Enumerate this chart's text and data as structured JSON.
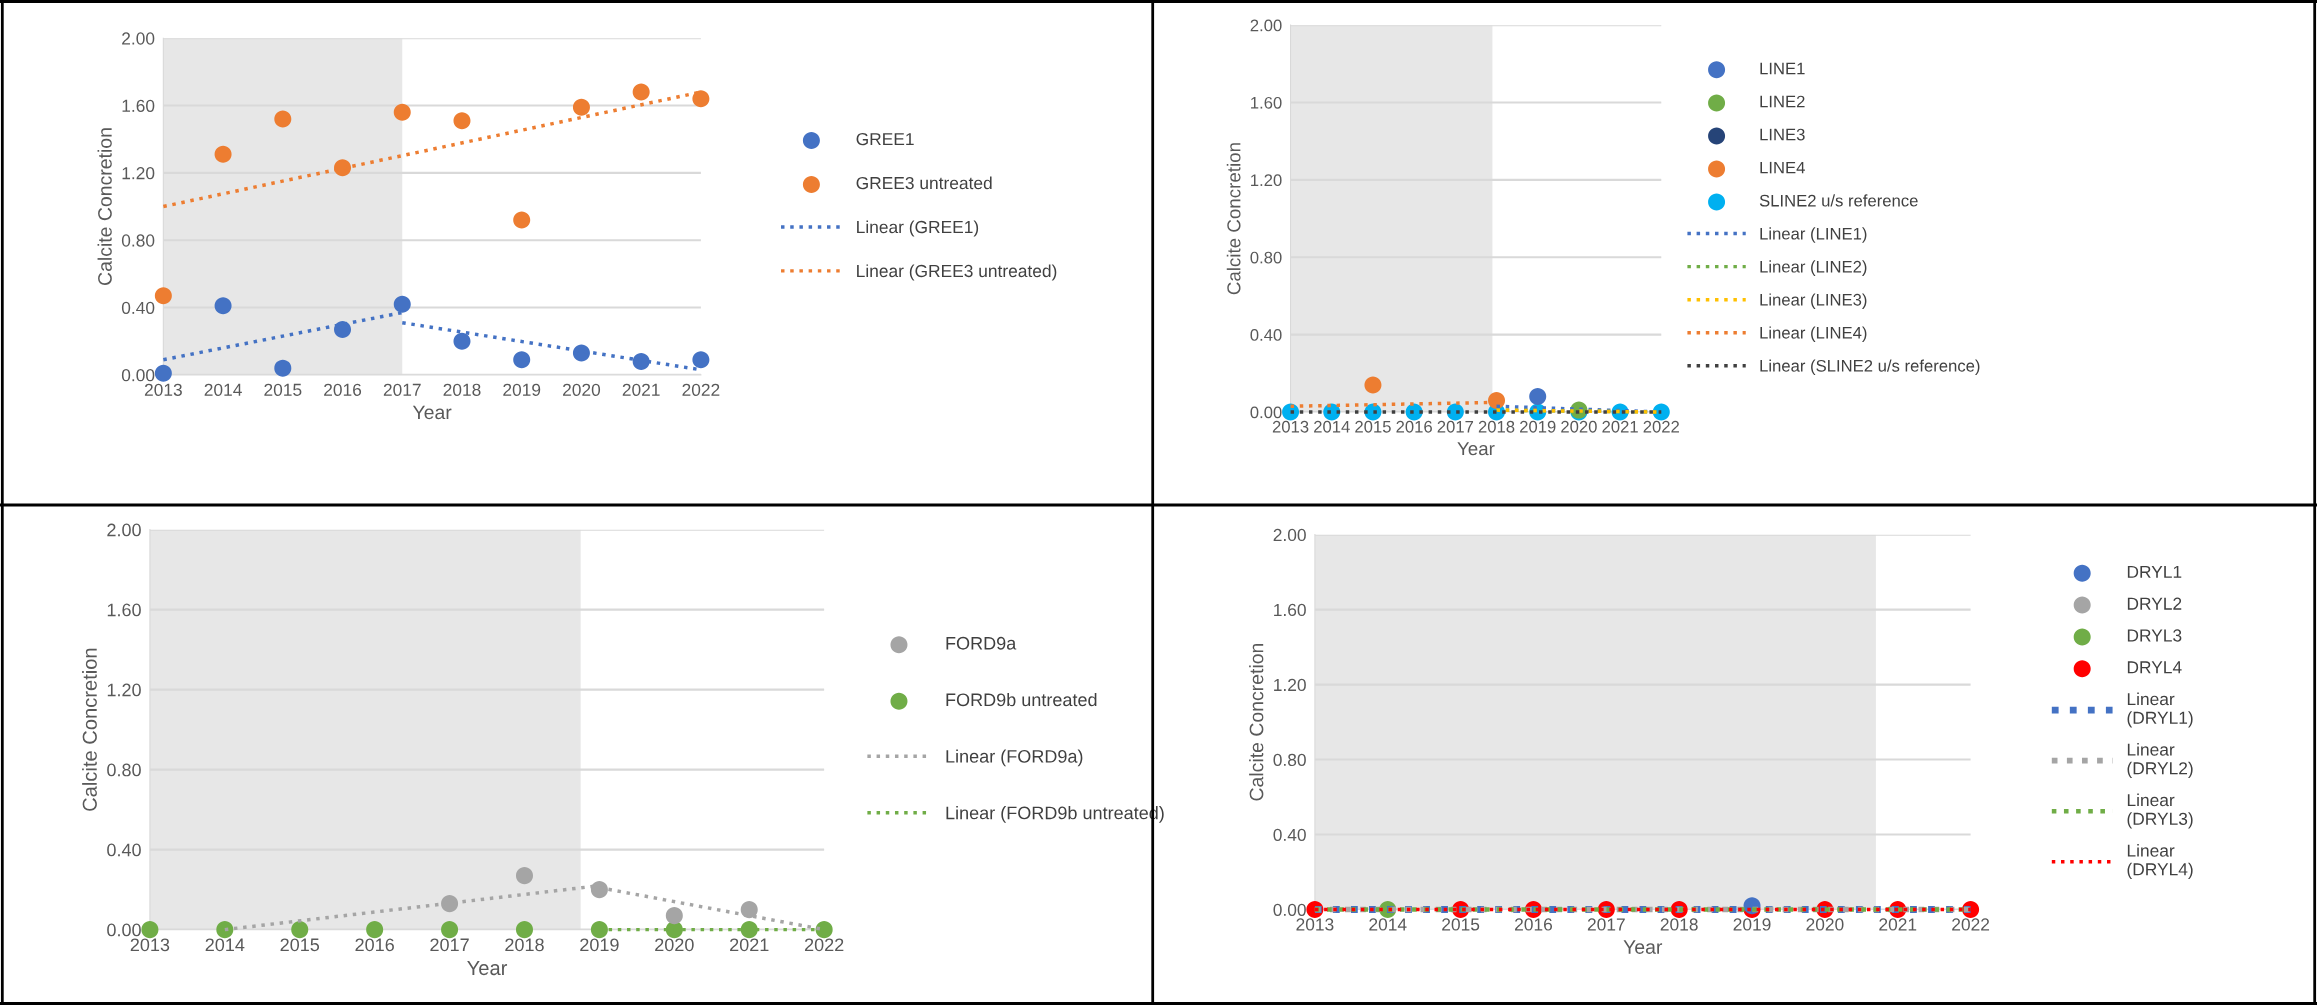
{
  "chart_data": [
    {
      "type": "scatter",
      "xlabel": "Year",
      "ylabel": "Calcite Concretion",
      "xlim": [
        2013,
        2022
      ],
      "xticks": [
        2013,
        2014,
        2015,
        2016,
        2017,
        2018,
        2019,
        2020,
        2021,
        2022
      ],
      "ylim": [
        0,
        2
      ],
      "yticks": [
        {
          "value": 0,
          "label": "0.00"
        },
        {
          "value": 0.4,
          "label": "0.40"
        },
        {
          "value": 0.8,
          "label": "0.80"
        },
        {
          "value": 1.2,
          "label": "1.20"
        },
        {
          "value": 1.6,
          "label": "1.60"
        },
        {
          "value": 2,
          "label": "2.00"
        }
      ],
      "grid": "y",
      "legend": "right",
      "x": [
        2013,
        2014,
        2015,
        2016,
        2017,
        2018,
        2019,
        2020,
        2021,
        2022
      ],
      "bands": [
        {
          "axis": "x",
          "from": 2013,
          "to": 2017,
          "color": "#e7e7e7"
        }
      ],
      "series": [
        {
          "name": "GREE1",
          "color": "#4472c4",
          "values": [
            0.01,
            0.41,
            0.04,
            0.27,
            0.42,
            0.2,
            0.09,
            0.13,
            0.08,
            0.09
          ]
        },
        {
          "name": "GREE3 untreated",
          "color": "#ed7d31",
          "values": [
            0.47,
            1.31,
            1.52,
            1.23,
            1.56,
            1.51,
            0.92,
            1.59,
            1.68,
            1.64
          ]
        },
        {
          "name": "Linear (GREE1)",
          "type": "line",
          "line_style": "dotted",
          "color": "#4472c4",
          "x": [
            2013,
            2017,
            null,
            2017,
            2022
          ],
          "values": [
            0.09,
            0.37,
            null,
            0.31,
            0.03
          ]
        },
        {
          "name": "Linear (GREE3 untreated)",
          "type": "line",
          "line_style": "dotted",
          "color": "#ed7d31",
          "x": [
            2013,
            2022
          ],
          "values": [
            1.0,
            1.68
          ]
        }
      ]
    },
    {
      "type": "scatter",
      "xlabel": "Year",
      "ylabel": "Calcite Concretion",
      "xlim": [
        2013,
        2022
      ],
      "xticks": [
        2013,
        2014,
        2015,
        2016,
        2017,
        2018,
        2019,
        2020,
        2021,
        2022
      ],
      "ylim": [
        0,
        2
      ],
      "yticks": [
        {
          "value": 0,
          "label": "0.00"
        },
        {
          "value": 0.4,
          "label": "0.40"
        },
        {
          "value": 0.8,
          "label": "0.80"
        },
        {
          "value": 1.2,
          "label": "1.20"
        },
        {
          "value": 1.6,
          "label": "1.60"
        },
        {
          "value": 2,
          "label": "2.00"
        }
      ],
      "grid": "y",
      "legend": "right",
      "x": [
        2013,
        2014,
        2015,
        2016,
        2017,
        2018,
        2019,
        2020,
        2021,
        2022
      ],
      "bands": [
        {
          "axis": "x",
          "from": 2013,
          "to": 2017.9,
          "color": "#e7e7e7"
        }
      ],
      "series": [
        {
          "name": "LINE1",
          "color": "#4472c4",
          "values": [
            null,
            null,
            null,
            null,
            null,
            null,
            0.08,
            null,
            null,
            null
          ]
        },
        {
          "name": "LINE2",
          "color": "#70ad47",
          "values": [
            null,
            null,
            null,
            null,
            null,
            null,
            null,
            0.01,
            null,
            null
          ]
        },
        {
          "name": "LINE3",
          "color": "#264478",
          "values": [
            null,
            null,
            null,
            null,
            null,
            null,
            null,
            null,
            null,
            null
          ]
        },
        {
          "name": "LINE4",
          "color": "#ed7d31",
          "values": [
            null,
            null,
            0.14,
            null,
            null,
            0.06,
            null,
            null,
            null,
            null
          ]
        },
        {
          "name": "SLINE2 u/s reference",
          "color": "#00b0f0",
          "values": [
            0,
            0,
            0,
            0,
            0,
            0,
            0,
            0,
            0,
            0
          ]
        },
        {
          "name": "Linear (LINE1)",
          "type": "line",
          "line_style": "dotted",
          "color": "#4472c4",
          "x": [
            2018,
            2022
          ],
          "values": [
            0.03,
            0.0
          ]
        },
        {
          "name": "Linear (LINE2)",
          "type": "line",
          "line_style": "dotted",
          "color": "#70ad47",
          "x": [
            2018,
            2022
          ],
          "values": [
            0.01,
            0.0
          ]
        },
        {
          "name": "Linear (LINE3)",
          "type": "line",
          "line_style": "dotted",
          "color": "#ffc000",
          "x": [
            2018,
            2022
          ],
          "values": [
            0.01,
            0.0
          ]
        },
        {
          "name": "Linear (LINE4)",
          "type": "line",
          "line_style": "dotted",
          "color": "#ed7d31",
          "x": [
            2013,
            2018
          ],
          "values": [
            0.03,
            0.05
          ]
        },
        {
          "name": "Linear (SLINE2 u/s reference)",
          "type": "line",
          "line_style": "dotted",
          "color": "#404040",
          "x": [
            2013,
            2022
          ],
          "values": [
            0,
            0
          ]
        }
      ]
    },
    {
      "type": "scatter",
      "xlabel": "Year",
      "ylabel": "Calcite Concretion",
      "xlim": [
        2013,
        2022
      ],
      "xticks": [
        2013,
        2014,
        2015,
        2016,
        2017,
        2018,
        2019,
        2020,
        2021,
        2022
      ],
      "ylim": [
        0,
        2
      ],
      "yticks": [
        {
          "value": 0,
          "label": "0.00"
        },
        {
          "value": 0.4,
          "label": "0.40"
        },
        {
          "value": 0.8,
          "label": "0.80"
        },
        {
          "value": 1.2,
          "label": "1.20"
        },
        {
          "value": 1.6,
          "label": "1.60"
        },
        {
          "value": 2,
          "label": "2.00"
        }
      ],
      "grid": "y",
      "legend": "right",
      "x": [
        2013,
        2014,
        2015,
        2016,
        2017,
        2018,
        2019,
        2020,
        2021,
        2022
      ],
      "bands": [
        {
          "axis": "x",
          "from": 2013,
          "to": 2018.75,
          "color": "#e7e7e7"
        }
      ],
      "series": [
        {
          "name": "FORD9a",
          "color": "#a5a5a5",
          "values": [
            null,
            null,
            null,
            null,
            0.13,
            0.27,
            0.2,
            0.07,
            0.1,
            null
          ]
        },
        {
          "name": "FORD9b untreated",
          "color": "#70ad47",
          "values": [
            0,
            0,
            0,
            0,
            0,
            0,
            0,
            0,
            0,
            0
          ]
        },
        {
          "name": "Linear (FORD9a)",
          "type": "line",
          "line_style": "dotted",
          "color": "#a5a5a5",
          "x": [
            2014,
            2019,
            null,
            2019,
            2022
          ],
          "values": [
            0,
            0.22,
            null,
            0.21,
            0
          ]
        },
        {
          "name": "Linear (FORD9b untreated)",
          "type": "line",
          "line_style": "dotted",
          "color": "#70ad47",
          "x": [
            2019,
            2022
          ],
          "values": [
            0,
            0
          ]
        }
      ]
    },
    {
      "type": "scatter",
      "xlabel": "Year",
      "ylabel": "Calcite Concretion",
      "xlim": [
        2013,
        2022
      ],
      "xticks": [
        2013,
        2014,
        2015,
        2016,
        2017,
        2018,
        2019,
        2020,
        2021,
        2022
      ],
      "ylim": [
        0,
        2
      ],
      "yticks": [
        {
          "value": 0,
          "label": "0.00"
        },
        {
          "value": 0.4,
          "label": "0.40"
        },
        {
          "value": 0.8,
          "label": "0.80"
        },
        {
          "value": 1.2,
          "label": "1.20"
        },
        {
          "value": 1.6,
          "label": "1.60"
        },
        {
          "value": 2,
          "label": "2.00"
        }
      ],
      "grid": "y",
      "legend": "right",
      "x": [
        2013,
        2014,
        2015,
        2016,
        2017,
        2018,
        2019,
        2020,
        2021,
        2022
      ],
      "bands": [
        {
          "axis": "x",
          "from": 2013,
          "to": 2020.7,
          "color": "#e7e7e7"
        }
      ],
      "series": [
        {
          "name": "DRYL1",
          "color": "#4472c4",
          "values": [
            null,
            null,
            null,
            null,
            null,
            null,
            0.02,
            null,
            null,
            null
          ]
        },
        {
          "name": "DRYL2",
          "color": "#a5a5a5",
          "values": [
            null,
            null,
            null,
            null,
            null,
            null,
            null,
            null,
            null,
            null
          ]
        },
        {
          "name": "DRYL3",
          "color": "#70ad47",
          "values": [
            null,
            0,
            null,
            null,
            null,
            null,
            null,
            null,
            null,
            null
          ]
        },
        {
          "name": "DRYL4",
          "color": "#ff0000",
          "values": [
            0,
            null,
            0,
            0,
            0,
            0,
            0,
            0,
            0,
            0
          ]
        },
        {
          "name": "Linear\n(DRYL1)",
          "type": "line",
          "line_style": "dotted",
          "color": "#4472c4",
          "x": [
            2013,
            2022
          ],
          "values": [
            0,
            0
          ]
        },
        {
          "name": "Linear\n(DRYL2)",
          "type": "line",
          "line_style": "dotted",
          "color": "#a5a5a5",
          "x": [
            2013,
            2022
          ],
          "values": [
            0,
            0
          ]
        },
        {
          "name": "Linear\n(DRYL3)",
          "type": "line",
          "line_style": "dotted",
          "color": "#70ad47",
          "x": [
            2013,
            2022
          ],
          "values": [
            0,
            0
          ]
        },
        {
          "name": "Linear\n(DRYL4)",
          "type": "line",
          "line_style": "dotted",
          "color": "#ff0000",
          "x": [
            2013,
            2022
          ],
          "values": [
            0,
            0
          ]
        }
      ]
    }
  ]
}
